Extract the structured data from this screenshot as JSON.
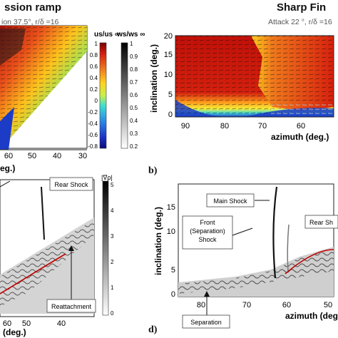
{
  "figure": {
    "left_title": "ssion ramp",
    "left_subtitle": "ion 37.5°, r/δ =16",
    "right_title": "Sharp Fin",
    "right_subtitle": "Attack 22 °, r/δ =16",
    "label_b": "b)",
    "label_d": "d)"
  },
  "chart_data": [
    {
      "id": "panel-a",
      "type": "heatmap",
      "x_ticks": [
        "60",
        "50",
        "40",
        "30"
      ],
      "xlabel": "eg.)",
      "colorbar_us": {
        "label": "us/us ∞",
        "ticks": [
          "1",
          "0.8",
          "0.6",
          "0.4",
          "0.2",
          "0",
          "-0.2",
          "-0.4",
          "-0.6",
          "-0.8"
        ]
      },
      "colorbar_ws": {
        "label": "ws/ws ∞",
        "ticks": [
          "1",
          "0.9",
          "0.8",
          "0.7",
          "0.6",
          "0.5",
          "0.4",
          "0.3",
          "0.2"
        ]
      }
    },
    {
      "id": "panel-b",
      "type": "heatmap",
      "x_ticks": [
        "90",
        "80",
        "70",
        "60"
      ],
      "y_ticks": [
        "0",
        "5",
        "10",
        "15",
        "20"
      ],
      "xlabel": "azimuth (deg.)",
      "ylabel": "inclination (deg.)"
    },
    {
      "id": "panel-c",
      "type": "heatmap",
      "x_ticks": [
        "60",
        "50",
        "40"
      ],
      "xlabel": "(deg.)",
      "colorbar": {
        "label": "|∇ρ|",
        "ticks": [
          "5",
          "4",
          "3",
          "2",
          "1",
          "0"
        ]
      },
      "annotations": [
        "Rear Shock",
        "Reattachment"
      ]
    },
    {
      "id": "panel-d",
      "type": "heatmap",
      "x_ticks": [
        "80",
        "70",
        "60",
        "50"
      ],
      "y_ticks": [
        "0",
        "5",
        "10",
        "15"
      ],
      "xlabel": "azimuth (deg.)",
      "ylabel": "inclination (deg.)",
      "annotations": [
        "Main Shock",
        "Rear Sh",
        "Front\n(Separation)\nShock",
        "Separation"
      ]
    }
  ]
}
